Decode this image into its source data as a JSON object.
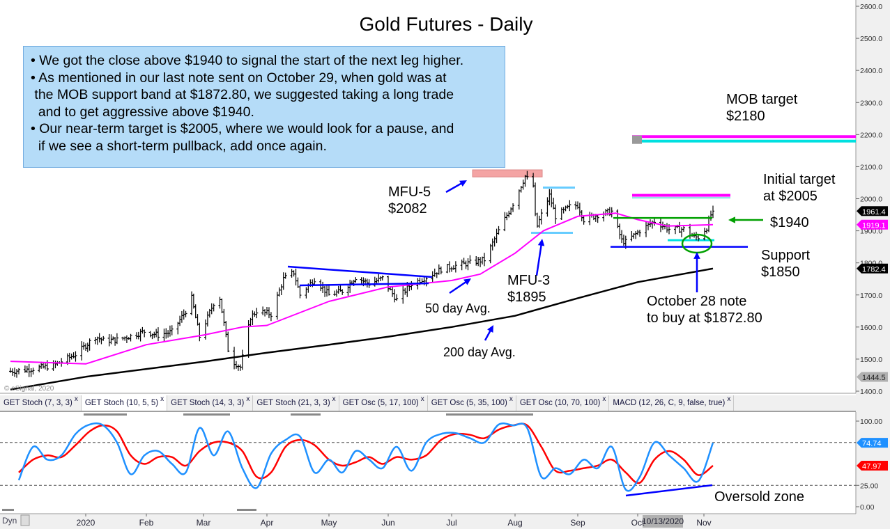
{
  "title": "Gold Futures - Daily",
  "note_lines": [
    "• We got the close above $1940 to signal the start of the next leg higher.",
    "• As mentioned in our last note sent on October 29, when gold was at",
    " the MOB support band at $1872.80, we suggested taking a long trade",
    "  and to get aggressive above $1940.",
    "• Our near-term target is $2005, where we would look for a pause, and",
    "  if we see a short-term pullback, add once again."
  ],
  "annotations": {
    "mob_target": "MOB target",
    "mob_target_value": "$2180",
    "initial_target": "Initial target",
    "initial_target_value": "at $2005",
    "level_1940": "$1940",
    "support": "Support",
    "support_value": "$1850",
    "mfu5": "MFU-5",
    "mfu5_value": "$2082",
    "mfu3": "MFU-3",
    "mfu3_value": "$1895",
    "ma50": "50 day Avg.",
    "ma200": "200 day Avg.",
    "oct28_line1": "October 28 note",
    "oct28_line2": "to buy at $1872.80",
    "oversold": "Oversold zone"
  },
  "watermark": "© eSignal, 2020",
  "tabs": [
    {
      "label": "GET Stoch (7, 3, 3)",
      "active": false
    },
    {
      "label": "GET Stoch (10, 5, 5)",
      "active": true
    },
    {
      "label": "GET Stoch (14, 3, 3)",
      "active": false
    },
    {
      "label": "GET Stoch (21, 3, 3)",
      "active": false
    },
    {
      "label": "GET Osc (5, 17, 100)",
      "active": false
    },
    {
      "label": "GET Osc (5, 35, 100)",
      "active": false
    },
    {
      "label": "GET Osc (10, 70, 100)",
      "active": false
    },
    {
      "label": "MACD (12, 26, C, 9, false, true)",
      "active": false
    }
  ],
  "tab_close": "x",
  "bottom": {
    "dyn": "Dyn",
    "cursor_date": "10/13/2020"
  },
  "colors": {
    "ma50": "#ff00ff",
    "ma200": "#000000",
    "stoch_fast": "#1e90ff",
    "stoch_slow": "#ff0000",
    "note_bg": "#b5dcf8",
    "trend": "#0000ff",
    "arrow_green": "#00a000"
  },
  "chart_data": [
    {
      "type": "ohlc",
      "title": "Gold Futures - Daily",
      "x_ticks": [
        "2020",
        "Feb",
        "Mar",
        "Apr",
        "May",
        "Jun",
        "Jul",
        "Aug",
        "Sep",
        "Oct",
        "Nov"
      ],
      "y_ticks": [
        "2600.0",
        "2500.0",
        "2400.0",
        "2300.0",
        "2200.0",
        "2100.0",
        "2000.0",
        "1900.0",
        "1800.0",
        "1700.0",
        "1600.0",
        "1500.0",
        "1400.0"
      ],
      "ylim": [
        1400,
        2600
      ],
      "price_tags": [
        {
          "value": "1961.4",
          "color": "#000000"
        },
        {
          "value": "1919.1",
          "color": "#ff00ff"
        },
        {
          "value": "1782.4",
          "color": "#000000"
        },
        {
          "value": "1444.5",
          "color": "#b0b0b0"
        }
      ],
      "close": [
        [
          "2019-11-25",
          1462
        ],
        [
          "2019-12-06",
          1470
        ],
        [
          "2019-12-16",
          1480
        ],
        [
          "2019-12-27",
          1515
        ],
        [
          "2020-01-06",
          1570
        ],
        [
          "2020-01-10",
          1558
        ],
        [
          "2020-01-17",
          1560
        ],
        [
          "2020-01-24",
          1572
        ],
        [
          "2020-01-31",
          1586
        ],
        [
          "2020-02-07",
          1575
        ],
        [
          "2020-02-14",
          1585
        ],
        [
          "2020-02-21",
          1650
        ],
        [
          "2020-02-24",
          1690
        ],
        [
          "2020-02-28",
          1570
        ],
        [
          "2020-03-06",
          1675
        ],
        [
          "2020-03-09",
          1690
        ],
        [
          "2020-03-13",
          1530
        ],
        [
          "2020-03-16",
          1490
        ],
        [
          "2020-03-19",
          1475
        ],
        [
          "2020-03-24",
          1630
        ],
        [
          "2020-03-27",
          1650
        ],
        [
          "2020-04-03",
          1640
        ],
        [
          "2020-04-09",
          1750
        ],
        [
          "2020-04-14",
          1770
        ],
        [
          "2020-04-17",
          1700
        ],
        [
          "2020-04-24",
          1750
        ],
        [
          "2020-05-01",
          1700
        ],
        [
          "2020-05-08",
          1712
        ],
        [
          "2020-05-15",
          1755
        ],
        [
          "2020-05-22",
          1735
        ],
        [
          "2020-05-29",
          1752
        ],
        [
          "2020-06-05",
          1685
        ],
        [
          "2020-06-12",
          1735
        ],
        [
          "2020-06-19",
          1755
        ],
        [
          "2020-06-26",
          1780
        ],
        [
          "2020-07-02",
          1790
        ],
        [
          "2020-07-10",
          1800
        ],
        [
          "2020-07-17",
          1810
        ],
        [
          "2020-07-24",
          1900
        ],
        [
          "2020-07-31",
          1985
        ],
        [
          "2020-08-06",
          2070
        ],
        [
          "2020-08-10",
          2040
        ],
        [
          "2020-08-11",
          1945
        ],
        [
          "2020-08-12",
          1915
        ],
        [
          "2020-08-14",
          1950
        ],
        [
          "2020-08-18",
          2010
        ],
        [
          "2020-08-21",
          1945
        ],
        [
          "2020-08-28",
          1975
        ],
        [
          "2020-09-01",
          1980
        ],
        [
          "2020-09-04",
          1935
        ],
        [
          "2020-09-11",
          1950
        ],
        [
          "2020-09-18",
          1960
        ],
        [
          "2020-09-23",
          1870
        ],
        [
          "2020-09-25",
          1865
        ],
        [
          "2020-10-02",
          1900
        ],
        [
          "2020-10-09",
          1930
        ],
        [
          "2020-10-16",
          1905
        ],
        [
          "2020-10-23",
          1905
        ],
        [
          "2020-10-28",
          1880
        ],
        [
          "2020-10-30",
          1880
        ],
        [
          "2020-11-03",
          1910
        ],
        [
          "2020-11-05",
          1950
        ],
        [
          "2020-11-06",
          1961.4
        ]
      ],
      "ma50": [
        [
          "2019-11-25",
          1493
        ],
        [
          "2020-01-01",
          1485
        ],
        [
          "2020-02-01",
          1545
        ],
        [
          "2020-03-01",
          1575
        ],
        [
          "2020-03-20",
          1600
        ],
        [
          "2020-04-01",
          1605
        ],
        [
          "2020-05-01",
          1680
        ],
        [
          "2020-06-01",
          1725
        ],
        [
          "2020-07-01",
          1745
        ],
        [
          "2020-07-15",
          1765
        ],
        [
          "2020-08-01",
          1830
        ],
        [
          "2020-08-15",
          1900
        ],
        [
          "2020-09-01",
          1945
        ],
        [
          "2020-09-20",
          1955
        ],
        [
          "2020-10-01",
          1935
        ],
        [
          "2020-10-15",
          1915
        ],
        [
          "2020-11-06",
          1919.1
        ]
      ],
      "ma200": [
        [
          "2019-11-25",
          1405
        ],
        [
          "2020-01-01",
          1445
        ],
        [
          "2020-03-01",
          1492
        ],
        [
          "2020-04-01",
          1520
        ],
        [
          "2020-05-01",
          1545
        ],
        [
          "2020-06-01",
          1570
        ],
        [
          "2020-07-01",
          1600
        ],
        [
          "2020-08-01",
          1635
        ],
        [
          "2020-09-01",
          1690
        ],
        [
          "2020-10-01",
          1740
        ],
        [
          "2020-11-06",
          1782.4
        ]
      ],
      "levels": {
        "mob_target": 2180,
        "initial_target": 2005,
        "resistance": 1940,
        "support": 1850,
        "mfu5": 2082,
        "mfu3": 1895,
        "buy": 1872.8
      }
    },
    {
      "type": "line",
      "title": "GET Stoch (10, 5, 5)",
      "y_ticks": [
        "100.00",
        "25.00",
        "0.00"
      ],
      "ylim": [
        0,
        100
      ],
      "reference_lines": [
        75,
        25
      ],
      "price_tags": [
        {
          "value": "74.74",
          "color": "#1e90ff"
        },
        {
          "value": "47.97",
          "color": "#ff0000"
        }
      ],
      "week_start": "2019-11-29",
      "fast": [
        31,
        70,
        55,
        60,
        85,
        96,
        95,
        75,
        38,
        60,
        65,
        50,
        40,
        92,
        60,
        88,
        45,
        22,
        62,
        78,
        82,
        40,
        55,
        40,
        65,
        55,
        45,
        70,
        42,
        75,
        85,
        86,
        80,
        75,
        96,
        95,
        92,
        35,
        45,
        38,
        55,
        45,
        70,
        20,
        35,
        75,
        60,
        45,
        30,
        74.74
      ],
      "slow": [
        40,
        55,
        60,
        58,
        72,
        88,
        95,
        88,
        60,
        50,
        58,
        58,
        48,
        65,
        75,
        75,
        65,
        35,
        40,
        70,
        78,
        72,
        55,
        48,
        52,
        58,
        50,
        58,
        55,
        60,
        78,
        85,
        84,
        80,
        90,
        95,
        95,
        70,
        42,
        42,
        45,
        48,
        55,
        40,
        28,
        55,
        65,
        55,
        37,
        47.97
      ]
    }
  ]
}
